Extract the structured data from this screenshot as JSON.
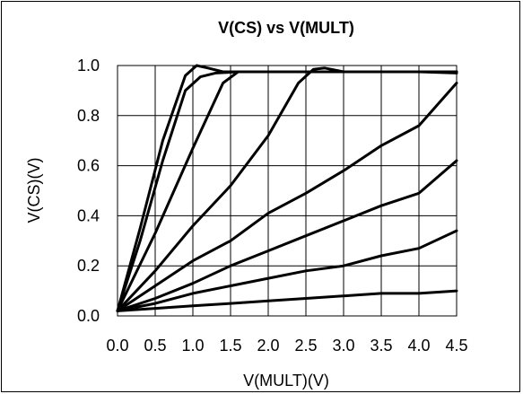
{
  "chart_data": {
    "type": "line",
    "title": "V(CS) vs V(MULT)",
    "xlabel": "V(MULT)(V)",
    "ylabel": "V(CS)(V)",
    "xlim": [
      0,
      4.5
    ],
    "ylim": [
      0,
      1.0
    ],
    "xticks": [
      "0.0",
      "0.5",
      "1.0",
      "1.5",
      "2.0",
      "2.5",
      "3.0",
      "3.5",
      "4.0",
      "4.5"
    ],
    "yticks": [
      "0.0",
      "0.2",
      "0.4",
      "0.6",
      "0.8",
      "1.0"
    ],
    "grid": true,
    "legend": "none",
    "series": [
      {
        "x": [
          0,
          0.3,
          0.6,
          0.9,
          1.05,
          1.2,
          1.4,
          2.0,
          3.0,
          4.0,
          4.5
        ],
        "y": [
          0.02,
          0.35,
          0.7,
          0.96,
          1.0,
          0.99,
          0.975,
          0.975,
          0.975,
          0.975,
          0.975
        ]
      },
      {
        "x": [
          0,
          0.3,
          0.6,
          0.9,
          1.1,
          1.3,
          1.6,
          2.0,
          3.0,
          4.0,
          4.5
        ],
        "y": [
          0.02,
          0.3,
          0.62,
          0.9,
          0.955,
          0.97,
          0.975,
          0.975,
          0.975,
          0.975,
          0.975
        ]
      },
      {
        "x": [
          0,
          0.5,
          1.0,
          1.4,
          1.6,
          2.0,
          3.0,
          4.0,
          4.5
        ],
        "y": [
          0.02,
          0.33,
          0.67,
          0.93,
          0.975,
          0.975,
          0.975,
          0.975,
          0.975
        ]
      },
      {
        "x": [
          0,
          0.5,
          1.0,
          1.5,
          2.0,
          2.4,
          2.6,
          2.75,
          3.0,
          4.0,
          4.5
        ],
        "y": [
          0.02,
          0.18,
          0.36,
          0.52,
          0.72,
          0.93,
          0.985,
          0.99,
          0.975,
          0.975,
          0.97
        ]
      },
      {
        "x": [
          0,
          0.5,
          1.0,
          1.5,
          2.0,
          2.5,
          3.0,
          3.5,
          4.0,
          4.5
        ],
        "y": [
          0.02,
          0.12,
          0.22,
          0.3,
          0.41,
          0.49,
          0.58,
          0.68,
          0.76,
          0.93
        ]
      },
      {
        "x": [
          0,
          0.5,
          1.0,
          1.5,
          2.0,
          2.5,
          3.0,
          3.5,
          4.0,
          4.5
        ],
        "y": [
          0.02,
          0.07,
          0.13,
          0.2,
          0.26,
          0.32,
          0.38,
          0.44,
          0.49,
          0.62
        ]
      },
      {
        "x": [
          0,
          0.5,
          1.0,
          1.5,
          2.0,
          2.5,
          3.0,
          3.5,
          4.0,
          4.5
        ],
        "y": [
          0.02,
          0.05,
          0.09,
          0.12,
          0.15,
          0.18,
          0.2,
          0.24,
          0.27,
          0.34
        ]
      },
      {
        "x": [
          0,
          0.5,
          1.0,
          1.5,
          2.0,
          2.5,
          3.0,
          3.5,
          4.0,
          4.5
        ],
        "y": [
          0.02,
          0.03,
          0.04,
          0.05,
          0.06,
          0.07,
          0.08,
          0.09,
          0.09,
          0.1
        ]
      }
    ]
  }
}
